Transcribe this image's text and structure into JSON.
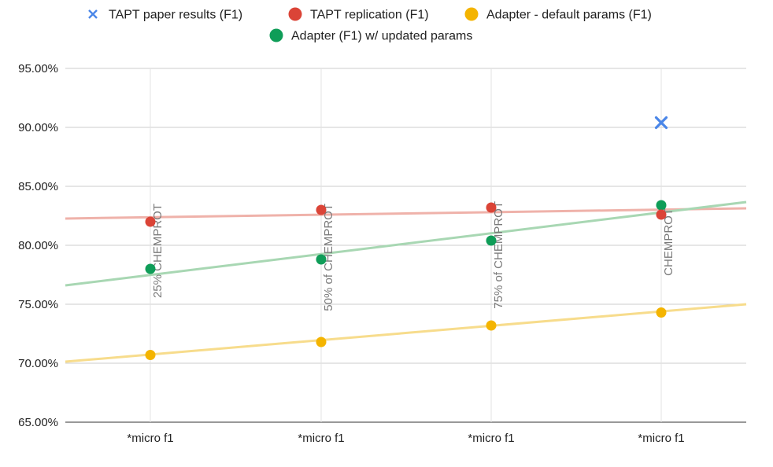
{
  "chart_data": {
    "type": "scatter",
    "categories": [
      "*micro f1",
      "*micro f1",
      "*micro f1",
      "*micro f1"
    ],
    "ylim": [
      0.65,
      0.95
    ],
    "y_ticks": [
      0.95,
      0.9,
      0.85,
      0.8,
      0.75,
      0.7,
      0.65
    ],
    "y_tick_labels": [
      "95.00%",
      "90.00%",
      "85.00%",
      "80.00%",
      "75.00%",
      "70.00%",
      "65.00%"
    ],
    "grid": true,
    "legend_position": "top",
    "series": [
      {
        "name": "TAPT paper results (F1)",
        "marker": "x",
        "color": "#4a86e8",
        "values": [
          null,
          null,
          null,
          0.904
        ],
        "trendline": null
      },
      {
        "name": "TAPT replication (F1)",
        "marker": "circle",
        "color": "#db4437",
        "trend_color": "#efb2aa",
        "values": [
          0.82,
          0.83,
          0.832,
          0.826
        ],
        "trendline": {
          "start": 0.8227,
          "end": 0.8313
        }
      },
      {
        "name": "Adapter - default params (F1)",
        "marker": "circle",
        "color": "#f4b400",
        "trend_color": "#f7dc8c",
        "values": [
          0.707,
          0.718,
          0.732,
          0.743
        ],
        "trendline": {
          "start": 0.7013,
          "end": 0.75
        }
      },
      {
        "name": "Adapter (F1) w/ updated params",
        "marker": "circle",
        "color": "#0f9d58",
        "trend_color": "#a8d7b3",
        "values": [
          0.78,
          0.788,
          0.804,
          0.834
        ],
        "trendline": {
          "start": 0.766,
          "end": 0.8367
        }
      }
    ],
    "annotations": [
      {
        "category_index": 0,
        "text": "25% CHEMPROT",
        "at": 0.83
      },
      {
        "category_index": 1,
        "text": "50% of CHEMPROT",
        "at": 0.83
      },
      {
        "category_index": 2,
        "text": "75% of CHEMPROT",
        "at": 0.832
      },
      {
        "category_index": 3,
        "text": "CHEMPROT",
        "at": 0.826
      }
    ]
  }
}
